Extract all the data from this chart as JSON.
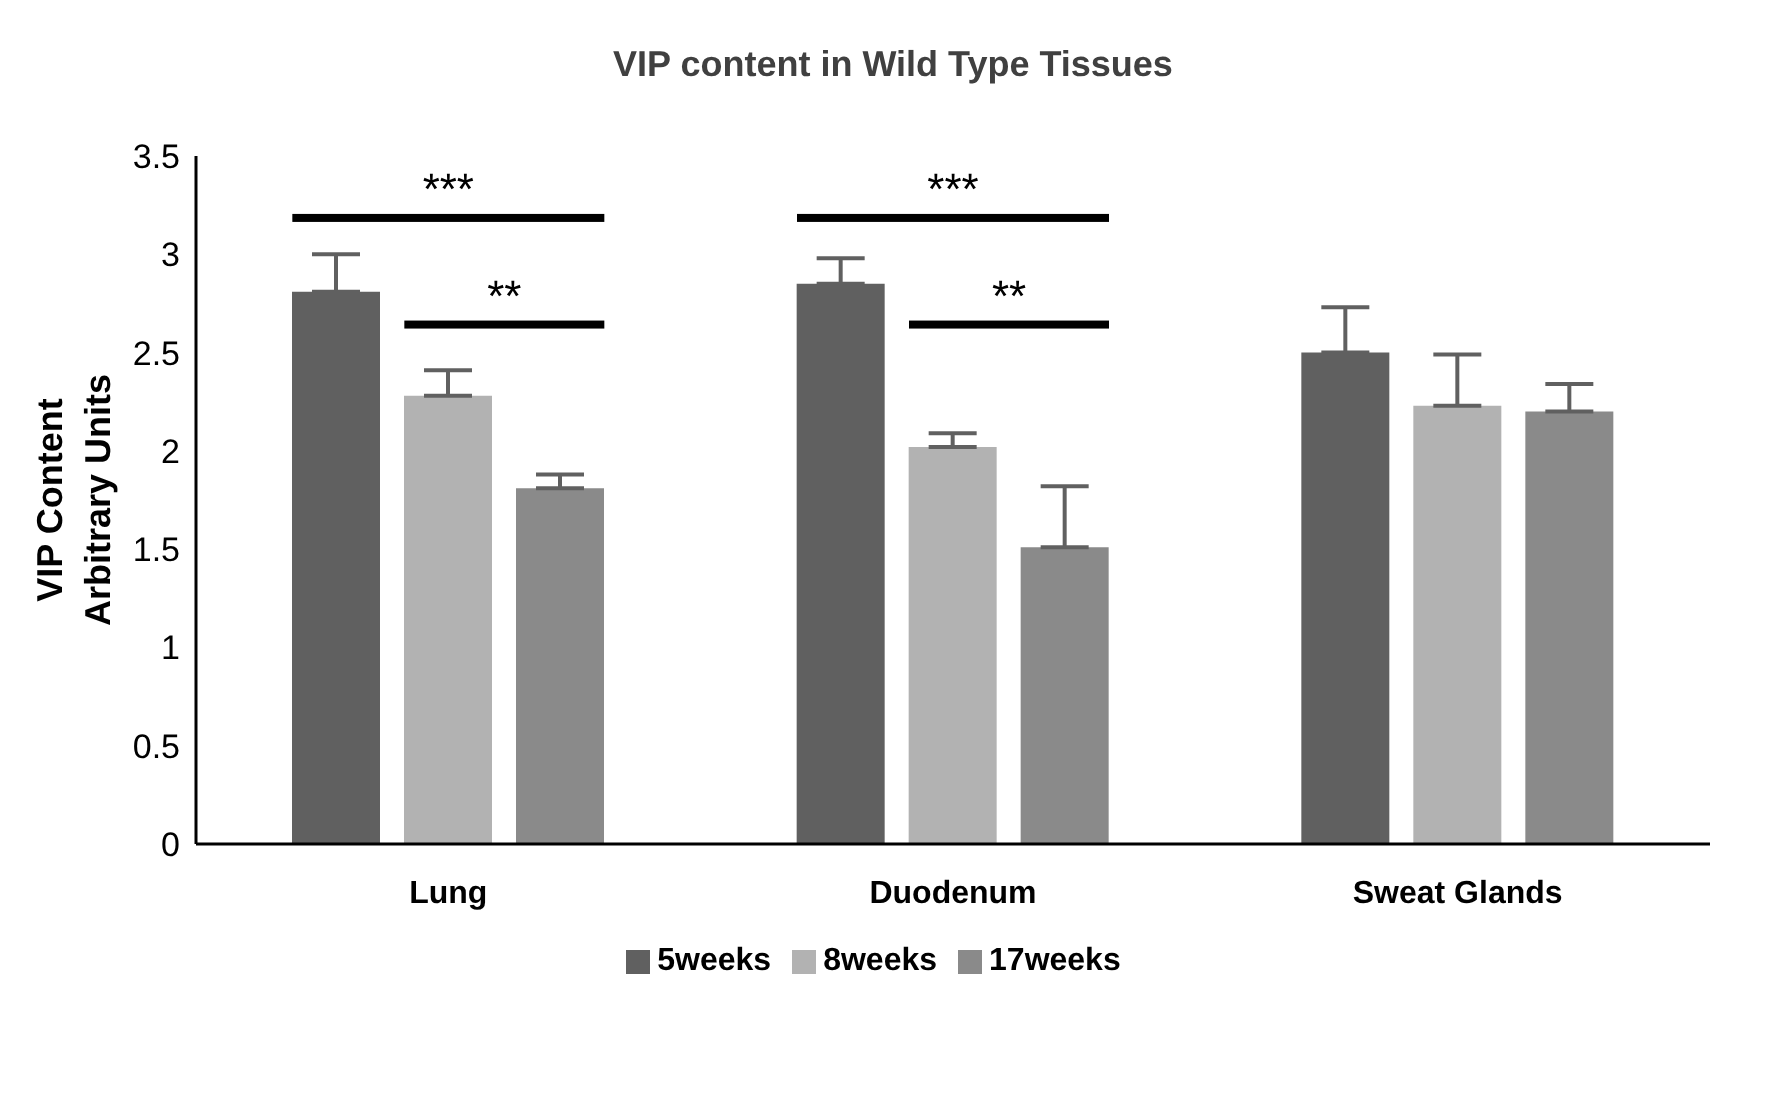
{
  "chart_data": {
    "type": "bar",
    "title": "VIP content in Wild Type Tissues",
    "ylabel": "VIP Content\nArbitrary Units",
    "categories": [
      "Lung",
      "Duodenum",
      "Sweat Glands"
    ],
    "series": [
      {
        "name": "5weeks",
        "color": "#606060",
        "values": [
          2.81,
          2.85,
          2.5
        ],
        "errors": [
          [
            2.81,
            3.0
          ],
          [
            2.85,
            2.98
          ],
          [
            2.5,
            2.73
          ]
        ]
      },
      {
        "name": "8weeks",
        "color": "#b2b2b2",
        "values": [
          2.28,
          2.02,
          2.23
        ],
        "errors": [
          [
            2.28,
            2.41
          ],
          [
            2.02,
            2.09
          ],
          [
            2.23,
            2.49
          ]
        ]
      },
      {
        "name": "17weeks",
        "color": "#8a8a8a",
        "values": [
          1.81,
          1.51,
          2.2
        ],
        "errors": [
          [
            1.81,
            1.88
          ],
          [
            1.51,
            1.82
          ],
          [
            2.2,
            2.34
          ]
        ]
      }
    ],
    "ylim": [
      0,
      3.5
    ],
    "yticks": [
      0,
      0.5,
      1,
      1.5,
      2,
      2.5,
      3,
      3.5
    ],
    "grid": false,
    "legend": "bottom",
    "annotations": [
      "***",
      "**",
      "***",
      "**"
    ]
  }
}
